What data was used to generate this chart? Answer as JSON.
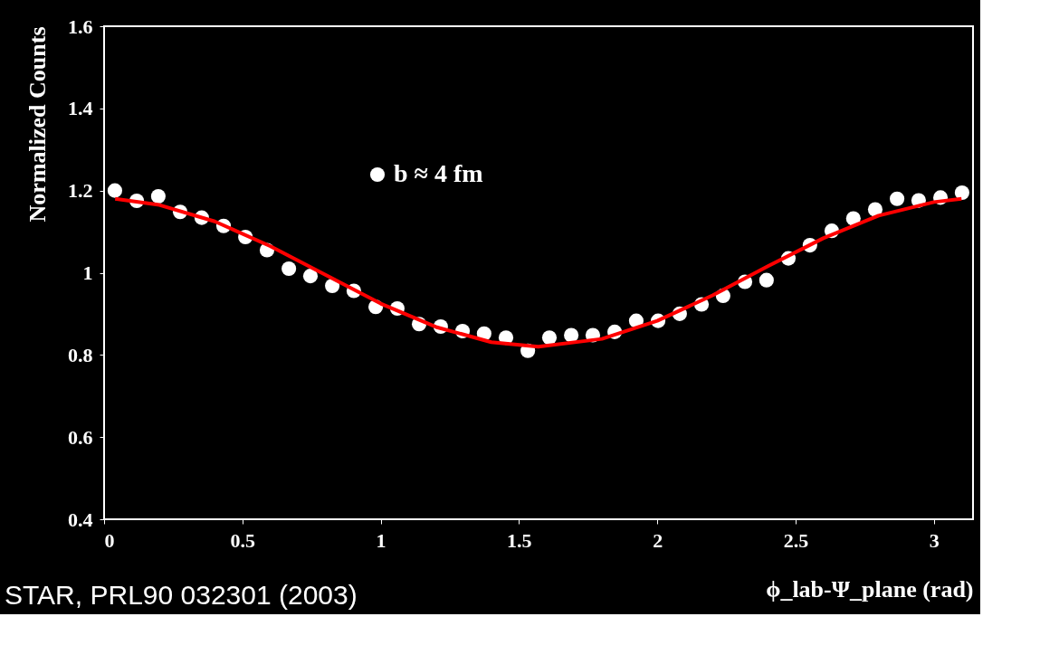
{
  "chart_data": {
    "type": "scatter",
    "ylabel": "Normalized Counts",
    "xlabel": "ϕ_lab-Ψ_plane (rad)",
    "x": [
      0.039,
      0.118,
      0.196,
      0.275,
      0.353,
      0.432,
      0.511,
      0.589,
      0.668,
      0.746,
      0.825,
      0.903,
      0.982,
      1.06,
      1.139,
      1.217,
      1.296,
      1.374,
      1.453,
      1.532,
      1.61,
      1.689,
      1.767,
      1.846,
      1.924,
      2.003,
      2.081,
      2.16,
      2.238,
      2.317,
      2.395,
      2.474,
      2.552,
      2.631,
      2.709,
      2.788,
      2.867,
      2.945,
      3.024,
      3.102
    ],
    "series": [
      {
        "name": "b ≈ 4 fm",
        "color": "#ffffff",
        "marker": "circle",
        "values": [
          1.2,
          1.175,
          1.186,
          1.148,
          1.134,
          1.114,
          1.087,
          1.055,
          1.01,
          0.992,
          0.968,
          0.956,
          0.917,
          0.913,
          0.875,
          0.869,
          0.858,
          0.852,
          0.842,
          0.81,
          0.842,
          0.848,
          0.848,
          0.856,
          0.883,
          0.883,
          0.9,
          0.923,
          0.944,
          0.978,
          0.982,
          1.035,
          1.067,
          1.102,
          1.132,
          1.154,
          1.18,
          1.176,
          1.183,
          1.195
        ]
      },
      {
        "type": "line",
        "color": "#ff0000",
        "line_style": "solid",
        "x": [
          0.04,
          0.2,
          0.4,
          0.6,
          0.8,
          1.0,
          1.2,
          1.4,
          1.57,
          1.8,
          2.0,
          2.2,
          2.4,
          2.6,
          2.8,
          3.0,
          3.1
        ],
        "values": [
          1.18,
          1.165,
          1.125,
          1.065,
          0.995,
          0.925,
          0.868,
          0.831,
          0.82,
          0.839,
          0.883,
          0.945,
          1.016,
          1.084,
          1.139,
          1.172,
          1.18
        ]
      }
    ],
    "xlim": [
      0,
      3.1416
    ],
    "xticks": [
      0,
      0.5,
      1,
      1.5,
      2,
      2.5,
      3
    ],
    "ylim": [
      0.4,
      1.6
    ],
    "yticks": [
      0.4,
      0.6,
      0.8,
      1,
      1.2,
      1.4,
      1.6
    ],
    "grid": false,
    "legend": "top",
    "annotations": [
      "STAR, PRL90 032301 (2003)"
    ]
  }
}
